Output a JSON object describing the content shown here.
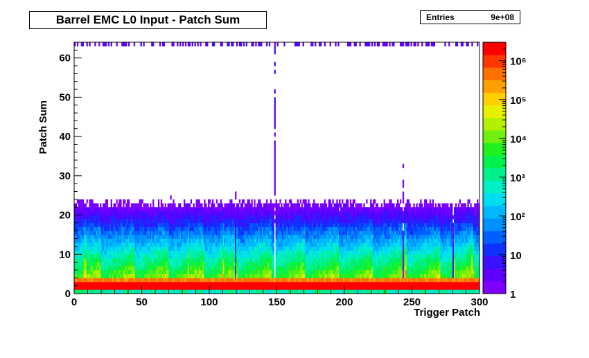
{
  "header": {
    "title": "Barrel EMC L0 Input - Patch Sum"
  },
  "stats": {
    "entries_label": "Entries",
    "entries_value": "9e+08"
  },
  "colors": {
    "frame": "#000000",
    "palette": [
      "#7f00ff",
      "#5f00ff",
      "#3b10ff",
      "#1030ff",
      "#0060ff",
      "#0090ff",
      "#00b8ff",
      "#00ddf0",
      "#00f0c8",
      "#00f08c",
      "#00f050",
      "#20f020",
      "#70f010",
      "#b0f000",
      "#e8f000",
      "#ffd000",
      "#ffa000",
      "#ff7000",
      "#ff3800",
      "#ff0000"
    ]
  },
  "chart_data": {
    "type": "heatmap",
    "title": "Barrel EMC L0 Input - Patch Sum",
    "xlabel": "Trigger Patch",
    "ylabel": "Patch Sum",
    "xlim": [
      0,
      300
    ],
    "ylim": [
      0,
      64
    ],
    "x_ticks": [
      "0",
      "50",
      "100",
      "150",
      "200",
      "250",
      "300"
    ],
    "y_ticks": [
      "0",
      "10",
      "20",
      "30",
      "40",
      "50",
      "60"
    ],
    "z_scale": "log",
    "z_range": [
      1,
      3000000
    ],
    "z_ticks": [
      "1",
      "10",
      "10²",
      "10³",
      "10⁴",
      "10⁵",
      "10⁶"
    ],
    "entries": "9e+08",
    "n_x_bins": 300,
    "n_y_bins": 64,
    "features": {
      "saturated_rows_y": [
        1,
        2
      ],
      "mostly_filled_row_y": 63,
      "low_count_columns_x": [
        119,
        148,
        243,
        280
      ],
      "bright_columns_x": [
        7,
        8,
        84,
        110,
        119,
        245,
        280,
        281,
        294
      ]
    }
  }
}
